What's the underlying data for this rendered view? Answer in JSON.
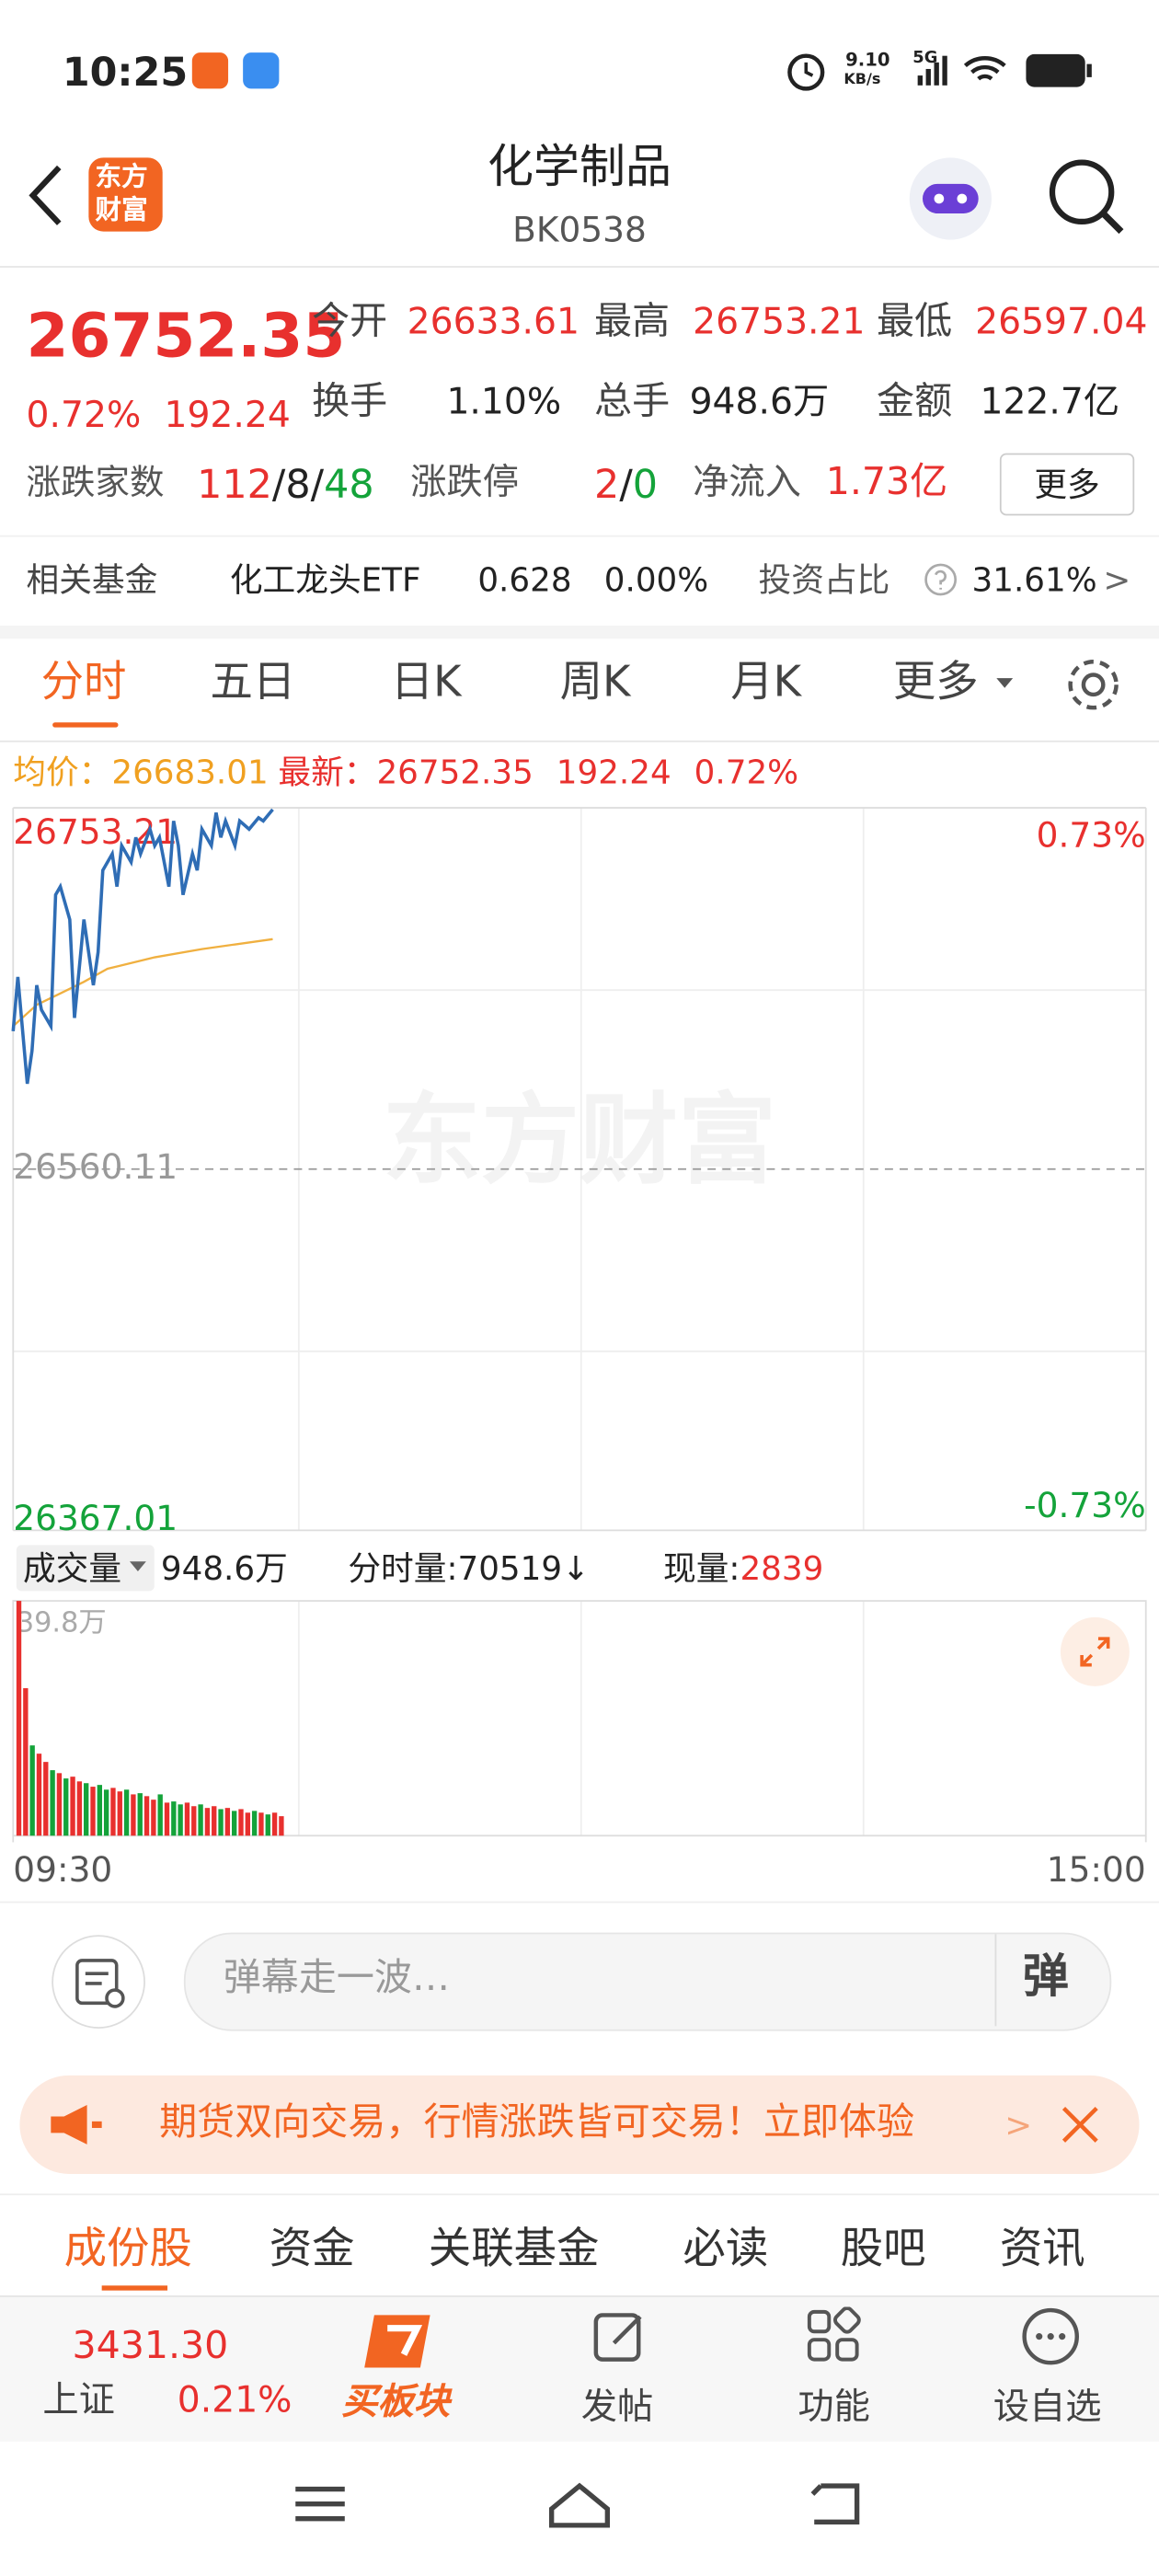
{
  "status_bar": {
    "time": "10:25",
    "net_speed": "9.10",
    "net_unit": "KB/s",
    "network": "5G"
  },
  "header": {
    "logo_top": "东方",
    "logo_bottom": "财富",
    "title": "化学制品",
    "code": "BK0538"
  },
  "quote": {
    "price": "26752.35",
    "change_pct": "0.72%",
    "change": "192.24",
    "stats": [
      {
        "label": "今开",
        "value": "26633.61"
      },
      {
        "label": "最高",
        "value": "26753.21"
      },
      {
        "label": "最低",
        "value": "26597.04"
      },
      {
        "label": "换手",
        "value": "1.10%"
      },
      {
        "label": "总手",
        "value": "948.6万"
      },
      {
        "label": "金额",
        "value": "122.7亿"
      }
    ],
    "breadth": {
      "label": "涨跌家数",
      "up": "112",
      "flat": "8",
      "down": "48",
      "separator": "/"
    },
    "limit": {
      "label": "涨跌停",
      "up": "2",
      "down": "0",
      "separator": "/"
    },
    "net_inflow": {
      "label": "净流入",
      "value": "1.73亿"
    },
    "more_button": "更多"
  },
  "fund": {
    "label": "相关基金",
    "name": "化工龙头ETF",
    "price": "0.628",
    "change_pct": "0.00%",
    "ratio_label": "投资占比",
    "ratio": "31.61%",
    "arrow": ">"
  },
  "chart_tabs": [
    "分时",
    "五日",
    "日K",
    "周K",
    "月K",
    "更多"
  ],
  "price_info": {
    "avg_label": "均价：",
    "avg": "26683.01",
    "last_label": "最新：",
    "last": "26752.35",
    "change": "192.24",
    "change_pct": "0.72%"
  },
  "chart_data": [
    {
      "type": "line",
      "series": [
        {
          "color": "#2f6db5",
          "x": [
            0,
            1,
            3,
            4,
            5,
            6,
            8,
            9,
            10,
            12,
            13,
            14,
            15,
            17,
            18,
            19,
            21,
            22,
            23,
            25,
            26,
            27,
            29,
            30,
            31,
            33,
            34,
            35,
            36,
            38,
            39,
            40,
            42,
            43,
            44,
            45,
            47,
            48,
            50,
            52,
            53,
            55
          ],
          "values": [
            26633.8,
            26662.8,
            26605.7,
            26623.3,
            26658.4,
            26645.2,
            26636.5,
            26706.7,
            26711.1,
            26693.5,
            26640.9,
            26667.2,
            26693.5,
            26658.4,
            26676.0,
            26719.8,
            26728.6,
            26711.1,
            26733.0,
            26724.2,
            26737.4,
            26728.6,
            26741.8,
            26733.0,
            26737.4,
            26711.1,
            26746.2,
            26733.0,
            26706.7,
            26728.6,
            26719.8,
            26741.8,
            26733.0,
            26750.6,
            26737.4,
            26746.2,
            26733.0,
            26746.2,
            26741.8,
            26747.9,
            26746.2,
            26752.35
          ]
        },
        {
          "color": "#f0b040",
          "x": [
            0,
            5,
            10,
            15,
            20,
            30,
            40,
            55
          ],
          "values": [
            26636.5,
            26647.9,
            26654.0,
            26660.2,
            26667.2,
            26673.3,
            26677.7,
            26683.01
          ]
        }
      ],
      "xlim": [
        0,
        240
      ],
      "xticks": [
        {
          "value": 0,
          "label": "09:30"
        },
        {
          "value": 240,
          "label": "15:00"
        }
      ],
      "ylim": [
        26367.01,
        26753.21
      ],
      "yticks": [
        26753.21,
        26560.11,
        26367.01
      ],
      "y2lim": [
        -0.73,
        0.73
      ],
      "y2ticks": [
        {
          "value": 0.73,
          "label": "0.73%"
        },
        {
          "value": -0.73,
          "label": "-0.73%"
        }
      ]
    },
    {
      "type": "bar",
      "values": [
        39.8,
        25.0,
        15.3,
        13.9,
        12.5,
        11.1,
        10.6,
        9.7,
        10.0,
        9.2,
        8.9,
        8.3,
        8.6,
        7.8,
        8.1,
        7.5,
        7.8,
        7.0,
        7.2,
        6.7,
        6.1,
        7.0,
        5.6,
        5.8,
        5.3,
        5.6,
        5.0,
        5.3,
        4.7,
        5.0,
        4.5,
        4.7,
        4.2,
        4.5,
        3.9,
        4.2,
        3.9,
        3.6,
        3.9,
        3.3
      ],
      "colors": [
        "#e8302e",
        "#e8302e",
        "#14a33a",
        "#e8302e",
        "#e8302e",
        "#14a33a",
        "#e8302e",
        "#14a33a",
        "#e8302e",
        "#e8302e",
        "#14a33a",
        "#e8302e",
        "#14a33a",
        "#14a33a",
        "#e8302e",
        "#e8302e",
        "#14a33a",
        "#e8302e",
        "#14a33a",
        "#e8302e",
        "#e8302e",
        "#14a33a",
        "#e8302e",
        "#14a33a",
        "#14a33a",
        "#e8302e",
        "#e8302e",
        "#14a33a",
        "#e8302e",
        "#e8302e",
        "#14a33a",
        "#e8302e",
        "#14a33a",
        "#e8302e",
        "#e8302e",
        "#14a33a",
        "#e8302e",
        "#14a33a",
        "#e8302e",
        "#e8302e"
      ],
      "ylim": [
        0,
        39.8
      ],
      "yticks": [
        {
          "value": 39.8,
          "label": "39.8万"
        }
      ]
    }
  ],
  "volume_info": {
    "label": "成交量",
    "total": "948.6万",
    "minute_label": "分时量:",
    "minute": "70519",
    "arrow": "↓",
    "current_label": "现量:",
    "current": "2839"
  },
  "watermark": "东方财富",
  "comment": {
    "placeholder": "弹幕走一波…",
    "button": "弹"
  },
  "banner": {
    "text": "期货双向交易，行情涨跌皆可交易！立即体验",
    "arrow": ">"
  },
  "section_tabs": [
    "成份股",
    "资金",
    "关联基金",
    "必读",
    "股吧",
    "资讯"
  ],
  "bottom_bar": {
    "index_value": "3431.30",
    "index_name": "上证",
    "index_change": "0.21%",
    "buy": "买板块",
    "items": [
      "发帖",
      "功能",
      "设自选"
    ]
  }
}
